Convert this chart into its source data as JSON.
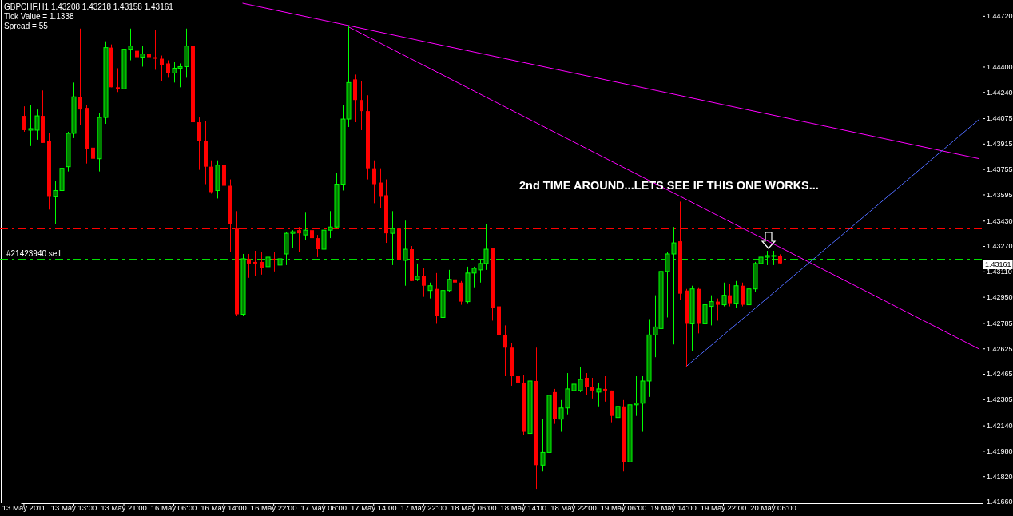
{
  "chart_data": {
    "type": "candlestick",
    "title": "GBPCHF,H1  1.43208 1.43218 1.43158 1.43161",
    "annotations": [
      "Tick Value = 1.1338",
      "Spread = 55",
      "2nd TIME AROUND...LETS SEE IF THIS ONE WORKS..."
    ],
    "categories": [
      "13 May 2011",
      null,
      null,
      null,
      null,
      null,
      null,
      null,
      "13 May 13:00",
      null,
      null,
      null,
      null,
      null,
      null,
      null,
      "13 May 21:00",
      null,
      null,
      null,
      null,
      null,
      null,
      null,
      "16 May 06:00",
      null,
      null,
      null,
      null,
      null,
      null,
      null,
      "16 May 14:00",
      null,
      null,
      null,
      null,
      null,
      null,
      null,
      "16 May 22:00",
      null,
      null,
      null,
      null,
      null,
      null,
      null,
      "17 May 06:00",
      null,
      null,
      null,
      null,
      null,
      null,
      null,
      "17 May 14:00",
      null,
      null,
      null,
      null,
      null,
      null,
      null,
      "17 May 22:00",
      null,
      null,
      null,
      null,
      null,
      null,
      null,
      "18 May 06:00",
      null,
      null,
      null,
      null,
      null,
      null,
      null,
      "18 May 14:00",
      null,
      null,
      null,
      null,
      null,
      null,
      null,
      "18 May 22:00",
      null,
      null,
      null,
      null,
      null,
      null,
      null,
      "19 May 06:00",
      null,
      null,
      null,
      null,
      null,
      null,
      null,
      "19 May 14:00",
      null,
      null,
      null,
      null,
      null,
      null,
      null,
      "19 May 22:00",
      null,
      null,
      null,
      null,
      null,
      null,
      null,
      "20 May 06:00",
      null,
      null,
      null,
      null,
      null,
      null,
      null,
      null,
      null,
      null,
      null,
      null,
      null,
      null,
      null,
      null,
      null,
      null,
      null,
      null,
      null,
      null,
      null,
      null,
      null,
      null,
      null,
      null,
      null,
      null,
      null,
      null,
      null
    ],
    "ohlc": [
      [
        1.4409,
        1.4415,
        1.4399,
        1.44
      ],
      [
        1.44,
        1.4416,
        1.439,
        1.4401
      ],
      [
        1.44,
        1.4413,
        1.4394,
        1.4409
      ],
      [
        1.4409,
        1.4425,
        1.4392,
        1.4392
      ],
      [
        1.4393,
        1.4398,
        1.435,
        1.4358
      ],
      [
        1.4358,
        1.4368,
        1.4341,
        1.4362
      ],
      [
        1.4362,
        1.4389,
        1.4356,
        1.4376
      ],
      [
        1.4377,
        1.4399,
        1.4374,
        1.4398
      ],
      [
        1.4398,
        1.443,
        1.4395,
        1.4421
      ],
      [
        1.4421,
        1.4464,
        1.4403,
        1.4413
      ],
      [
        1.4414,
        1.4416,
        1.4379,
        1.4388
      ],
      [
        1.4389,
        1.4411,
        1.4377,
        1.4382
      ],
      [
        1.4382,
        1.4411,
        1.4374,
        1.4408
      ],
      [
        1.4408,
        1.4456,
        1.4404,
        1.4452
      ],
      [
        1.4452,
        1.4454,
        1.4427,
        1.4427
      ],
      [
        1.4427,
        1.4439,
        1.4424,
        1.4426
      ],
      [
        1.4426,
        1.4451,
        1.4426,
        1.4451
      ],
      [
        1.4451,
        1.4464,
        1.4444,
        1.4453
      ],
      [
        1.445,
        1.4455,
        1.4436,
        1.4446
      ],
      [
        1.4446,
        1.4453,
        1.444,
        1.4448
      ],
      [
        1.4448,
        1.4454,
        1.4438,
        1.4446
      ],
      [
        1.4446,
        1.4463,
        1.4438,
        1.4445
      ],
      [
        1.4445,
        1.4447,
        1.4431,
        1.4441
      ],
      [
        1.4442,
        1.4444,
        1.4433,
        1.4436
      ],
      [
        1.4436,
        1.4443,
        1.443,
        1.4439
      ],
      [
        1.4439,
        1.4442,
        1.4427,
        1.444
      ],
      [
        1.444,
        1.4464,
        1.4433,
        1.4453
      ],
      [
        1.4453,
        1.4457,
        1.4405,
        1.4405
      ],
      [
        1.4405,
        1.4408,
        1.4375,
        1.4393
      ],
      [
        1.4393,
        1.4406,
        1.4366,
        1.4377
      ],
      [
        1.4377,
        1.4381,
        1.436,
        1.4361
      ],
      [
        1.4362,
        1.4381,
        1.4357,
        1.4378
      ],
      [
        1.4378,
        1.4386,
        1.4357,
        1.4365
      ],
      [
        1.4365,
        1.4369,
        1.4323,
        1.4341
      ],
      [
        1.4338,
        1.4349,
        1.4283,
        1.4284
      ],
      [
        1.4284,
        1.4322,
        1.4283,
        1.4319
      ],
      [
        1.4319,
        1.4322,
        1.4307,
        1.4316
      ],
      [
        1.4317,
        1.4324,
        1.4308,
        1.4316
      ],
      [
        1.4317,
        1.4323,
        1.4309,
        1.4313
      ],
      [
        1.4314,
        1.4323,
        1.431,
        1.432
      ],
      [
        1.4319,
        1.4323,
        1.4311,
        1.4318
      ],
      [
        1.4315,
        1.4323,
        1.4311,
        1.4319
      ],
      [
        1.4322,
        1.4336,
        1.4315,
        1.4335
      ],
      [
        1.4335,
        1.4337,
        1.4326,
        1.4336
      ],
      [
        1.4337,
        1.4339,
        1.4323,
        1.4335
      ],
      [
        1.4334,
        1.4348,
        1.4331,
        1.4337
      ],
      [
        1.4337,
        1.4341,
        1.4328,
        1.4332
      ],
      [
        1.4332,
        1.4334,
        1.432,
        1.4325
      ],
      [
        1.4325,
        1.4344,
        1.4318,
        1.4337
      ],
      [
        1.4337,
        1.4349,
        1.4332,
        1.4339
      ],
      [
        1.4339,
        1.4373,
        1.4338,
        1.4366
      ],
      [
        1.4366,
        1.4416,
        1.4362,
        1.4407
      ],
      [
        1.4407,
        1.4466,
        1.4402,
        1.443
      ],
      [
        1.4432,
        1.4435,
        1.4405,
        1.4419
      ],
      [
        1.4419,
        1.4431,
        1.44,
        1.4412
      ],
      [
        1.4412,
        1.4422,
        1.4369,
        1.4376
      ],
      [
        1.4376,
        1.4381,
        1.4354,
        1.4366
      ],
      [
        1.4367,
        1.4376,
        1.4351,
        1.4358
      ],
      [
        1.4359,
        1.4369,
        1.4329,
        1.4335
      ],
      [
        1.4335,
        1.4349,
        1.4315,
        1.4338
      ],
      [
        1.4338,
        1.4338,
        1.4309,
        1.4318
      ],
      [
        1.4318,
        1.4343,
        1.4302,
        1.4325
      ],
      [
        1.4325,
        1.4327,
        1.4305,
        1.4305
      ],
      [
        1.4306,
        1.4316,
        1.4305,
        1.4308
      ],
      [
        1.4308,
        1.4313,
        1.4295,
        1.4302
      ],
      [
        1.4299,
        1.4304,
        1.4294,
        1.4302
      ],
      [
        1.43,
        1.431,
        1.4278,
        1.4283
      ],
      [
        1.4282,
        1.4301,
        1.4275,
        1.4299
      ],
      [
        1.4299,
        1.4312,
        1.4298,
        1.4306
      ],
      [
        1.4306,
        1.4309,
        1.4297,
        1.4304
      ],
      [
        1.4304,
        1.4305,
        1.429,
        1.4292
      ],
      [
        1.4292,
        1.4314,
        1.4291,
        1.431
      ],
      [
        1.431,
        1.4314,
        1.4301,
        1.4313
      ],
      [
        1.4312,
        1.4318,
        1.4304,
        1.4316
      ],
      [
        1.4316,
        1.4341,
        1.4312,
        1.4325
      ],
      [
        1.4326,
        1.4326,
        1.428,
        1.4288
      ],
      [
        1.4289,
        1.4299,
        1.4254,
        1.4271
      ],
      [
        1.4271,
        1.4277,
        1.4245,
        1.4263
      ],
      [
        1.4263,
        1.4266,
        1.4239,
        1.4245
      ],
      [
        1.4245,
        1.4254,
        1.4226,
        1.4241
      ],
      [
        1.4241,
        1.4246,
        1.4208,
        1.421
      ],
      [
        1.4209,
        1.427,
        1.4209,
        1.4242
      ],
      [
        1.4242,
        1.4263,
        1.4174,
        1.4189
      ],
      [
        1.4189,
        1.4218,
        1.4185,
        1.4197
      ],
      [
        1.4197,
        1.4233,
        1.4197,
        1.4233
      ],
      [
        1.4235,
        1.4237,
        1.4215,
        1.4218
      ],
      [
        1.4218,
        1.423,
        1.421,
        1.4225
      ],
      [
        1.4225,
        1.4247,
        1.4221,
        1.4237
      ],
      [
        1.4236,
        1.4249,
        1.4235,
        1.424
      ],
      [
        1.4236,
        1.4251,
        1.4235,
        1.4243
      ],
      [
        1.4244,
        1.4247,
        1.4233,
        1.4238
      ],
      [
        1.4238,
        1.4244,
        1.4231,
        1.4236
      ],
      [
        1.4235,
        1.4241,
        1.4226,
        1.4237
      ],
      [
        1.4237,
        1.4245,
        1.4229,
        1.4236
      ],
      [
        1.4236,
        1.4236,
        1.4216,
        1.422
      ],
      [
        1.4219,
        1.4233,
        1.4217,
        1.4226
      ],
      [
        1.4226,
        1.423,
        1.4185,
        1.4191
      ],
      [
        1.4191,
        1.4232,
        1.419,
        1.4227
      ],
      [
        1.4227,
        1.4245,
        1.422,
        1.4228
      ],
      [
        1.4228,
        1.4245,
        1.421,
        1.4242
      ],
      [
        1.4242,
        1.4281,
        1.4232,
        1.4271
      ],
      [
        1.4271,
        1.4296,
        1.4257,
        1.4276
      ],
      [
        1.4275,
        1.4315,
        1.4264,
        1.4311
      ],
      [
        1.4311,
        1.4323,
        1.4282,
        1.4322
      ],
      [
        1.4322,
        1.4339,
        1.4265,
        1.4329
      ],
      [
        1.433,
        1.4355,
        1.4293,
        1.4297
      ],
      [
        1.4299,
        1.43,
        1.4251,
        1.4278
      ],
      [
        1.4278,
        1.4302,
        1.4261,
        1.43
      ],
      [
        1.43,
        1.4301,
        1.4272,
        1.4278
      ],
      [
        1.4278,
        1.4294,
        1.4273,
        1.429
      ],
      [
        1.4289,
        1.4296,
        1.4277,
        1.4292
      ],
      [
        1.4292,
        1.4294,
        1.428,
        1.429
      ],
      [
        1.429,
        1.4304,
        1.4289,
        1.4296
      ],
      [
        1.4296,
        1.4303,
        1.4289,
        1.4291
      ],
      [
        1.4291,
        1.4305,
        1.4288,
        1.4302
      ],
      [
        1.4302,
        1.4304,
        1.4289,
        1.429
      ],
      [
        1.429,
        1.4305,
        1.4287,
        1.43
      ],
      [
        1.43,
        1.4317,
        1.4298,
        1.4316
      ],
      [
        1.4316,
        1.4325,
        1.4311,
        1.432
      ],
      [
        1.432,
        1.4324,
        1.4315,
        1.4321
      ],
      [
        1.4321,
        1.4324,
        1.4315,
        1.4321
      ],
      [
        1.43208,
        1.43218,
        1.43158,
        1.43161
      ],
      null,
      null,
      null,
      null,
      null,
      null,
      null,
      null,
      null,
      null,
      null,
      null,
      null,
      null,
      null,
      null,
      null,
      null,
      null,
      null,
      null,
      null,
      null,
      null,
      null,
      null,
      null,
      null,
      null,
      null,
      null,
      null
    ],
    "series": [
      {
        "type": "line",
        "color": "#ff00ff",
        "values": [
          null,
          null,
          null,
          null,
          null,
          null,
          null,
          null,
          null,
          null,
          null,
          null,
          null,
          null,
          null,
          null,
          null,
          null,
          null,
          null,
          null,
          null,
          null,
          null,
          null,
          null,
          null,
          null,
          null,
          null,
          null,
          null,
          null,
          null,
          null,
          1.448,
          null,
          null,
          null,
          null,
          null,
          null,
          null,
          null,
          null,
          null,
          null,
          null,
          null,
          null,
          null,
          null,
          null,
          null,
          null,
          null,
          null,
          null,
          null,
          null,
          null,
          null,
          null,
          null,
          null,
          null,
          null,
          null,
          null,
          null,
          null,
          null,
          null,
          null,
          null,
          null,
          null,
          null,
          null,
          null,
          null,
          null,
          null,
          null,
          null,
          null,
          null,
          null,
          null,
          null,
          null,
          null,
          null,
          null,
          null,
          null,
          null,
          null,
          null,
          null,
          null,
          null,
          null,
          null,
          null,
          null,
          null,
          null,
          null,
          null,
          null,
          null,
          null,
          null,
          null,
          null,
          null,
          null,
          null,
          null,
          null,
          null,
          null,
          null,
          null,
          null,
          null,
          null,
          null,
          null,
          null,
          null,
          null,
          null,
          null,
          null,
          null,
          null,
          null,
          null,
          null,
          null,
          null,
          null,
          null,
          null,
          null,
          null,
          null,
          null,
          null,
          null,
          null,
          1.4382
        ]
      },
      {
        "type": "line",
        "color": "#ff00ff",
        "values": [
          null,
          null,
          null,
          null,
          null,
          null,
          null,
          null,
          null,
          null,
          null,
          null,
          null,
          null,
          null,
          null,
          null,
          null,
          null,
          null,
          null,
          null,
          null,
          null,
          null,
          null,
          null,
          null,
          null,
          null,
          null,
          null,
          null,
          null,
          null,
          null,
          null,
          null,
          null,
          null,
          null,
          null,
          null,
          null,
          null,
          null,
          null,
          null,
          null,
          null,
          null,
          null,
          1.4465,
          null,
          null,
          null,
          null,
          null,
          null,
          null,
          null,
          null,
          null,
          null,
          null,
          null,
          null,
          null,
          null,
          null,
          null,
          null,
          null,
          null,
          null,
          null,
          null,
          null,
          null,
          null,
          null,
          null,
          null,
          null,
          null,
          null,
          null,
          null,
          null,
          null,
          null,
          null,
          null,
          null,
          null,
          null,
          null,
          null,
          null,
          null,
          null,
          null,
          null,
          null,
          null,
          null,
          null,
          null,
          null,
          null,
          null,
          null,
          null,
          null,
          null,
          null,
          null,
          null,
          null,
          null,
          null,
          null,
          null,
          null,
          null,
          null,
          null,
          null,
          null,
          null,
          null,
          null,
          null,
          null,
          null,
          null,
          null,
          null,
          null,
          null,
          null,
          null,
          null,
          null,
          null,
          null,
          null,
          null,
          null,
          null,
          null,
          null,
          null,
          1.4262
        ]
      },
      {
        "type": "line",
        "color": "#4f6bff",
        "values": [
          null,
          null,
          null,
          null,
          null,
          null,
          null,
          null,
          null,
          null,
          null,
          null,
          null,
          null,
          null,
          null,
          null,
          null,
          null,
          null,
          null,
          null,
          null,
          null,
          null,
          null,
          null,
          null,
          null,
          null,
          null,
          null,
          null,
          null,
          null,
          null,
          null,
          null,
          null,
          null,
          null,
          null,
          null,
          null,
          null,
          null,
          null,
          null,
          null,
          null,
          null,
          null,
          null,
          null,
          null,
          null,
          null,
          null,
          null,
          null,
          null,
          null,
          null,
          null,
          null,
          null,
          null,
          null,
          null,
          null,
          null,
          null,
          null,
          null,
          null,
          null,
          null,
          null,
          null,
          null,
          null,
          null,
          null,
          null,
          null,
          null,
          null,
          null,
          null,
          null,
          null,
          null,
          null,
          null,
          null,
          null,
          null,
          null,
          null,
          null,
          null,
          null,
          null,
          null,
          null,
          null,
          1.4251,
          null,
          null,
          null,
          null,
          null,
          null,
          null,
          null,
          null,
          null,
          null,
          null,
          null,
          null,
          null,
          null,
          null,
          null,
          null,
          null,
          null,
          null,
          null,
          null,
          null,
          null,
          null,
          null,
          null,
          null,
          null,
          null,
          null,
          null,
          null,
          null,
          null,
          null,
          null,
          null,
          null,
          null,
          null,
          null,
          null,
          null,
          1.4407
        ]
      }
    ],
    "ylim": [
      1.4165,
      1.4482
    ],
    "yticks": [
      {
        "value": 1.4472,
        "label": "1.44720"
      },
      {
        "value": 1.444,
        "label": "1.44400"
      },
      {
        "value": 1.4424,
        "label": "1.44240"
      },
      {
        "value": 1.44075,
        "label": "1.44075"
      },
      {
        "value": 1.43915,
        "label": "1.43915"
      },
      {
        "value": 1.43755,
        "label": "1.43755"
      },
      {
        "value": 1.43595,
        "label": "1.43595"
      },
      {
        "value": 1.4343,
        "label": "1.43430"
      },
      {
        "value": 1.4327,
        "label": "1.43270"
      },
      {
        "value": 1.4311,
        "label": "1.43110"
      },
      {
        "value": 1.4295,
        "label": "1.42950"
      },
      {
        "value": 1.42785,
        "label": "1.42785"
      },
      {
        "value": 1.42625,
        "label": "1.42625"
      },
      {
        "value": 1.42465,
        "label": "1.42465"
      },
      {
        "value": 1.42305,
        "label": "1.42305"
      },
      {
        "value": 1.4214,
        "label": "1.42140"
      },
      {
        "value": 1.4198,
        "label": "1.41980"
      },
      {
        "value": 1.4182,
        "label": "1.41820"
      },
      {
        "value": 1.4166,
        "label": "1.41660"
      }
    ],
    "ref_lines": [
      {
        "axis": "y",
        "value": 1.4338,
        "color": "#ff0000",
        "line_style": "dashed"
      },
      {
        "axis": "y",
        "value": 1.4319,
        "label": "#21423940 sell",
        "color": "#00e000",
        "line_style": "dashed"
      },
      {
        "axis": "y",
        "value": 1.43161,
        "label": "1.43161",
        "color": "#a0a0a0",
        "line_style": "solid"
      }
    ]
  }
}
